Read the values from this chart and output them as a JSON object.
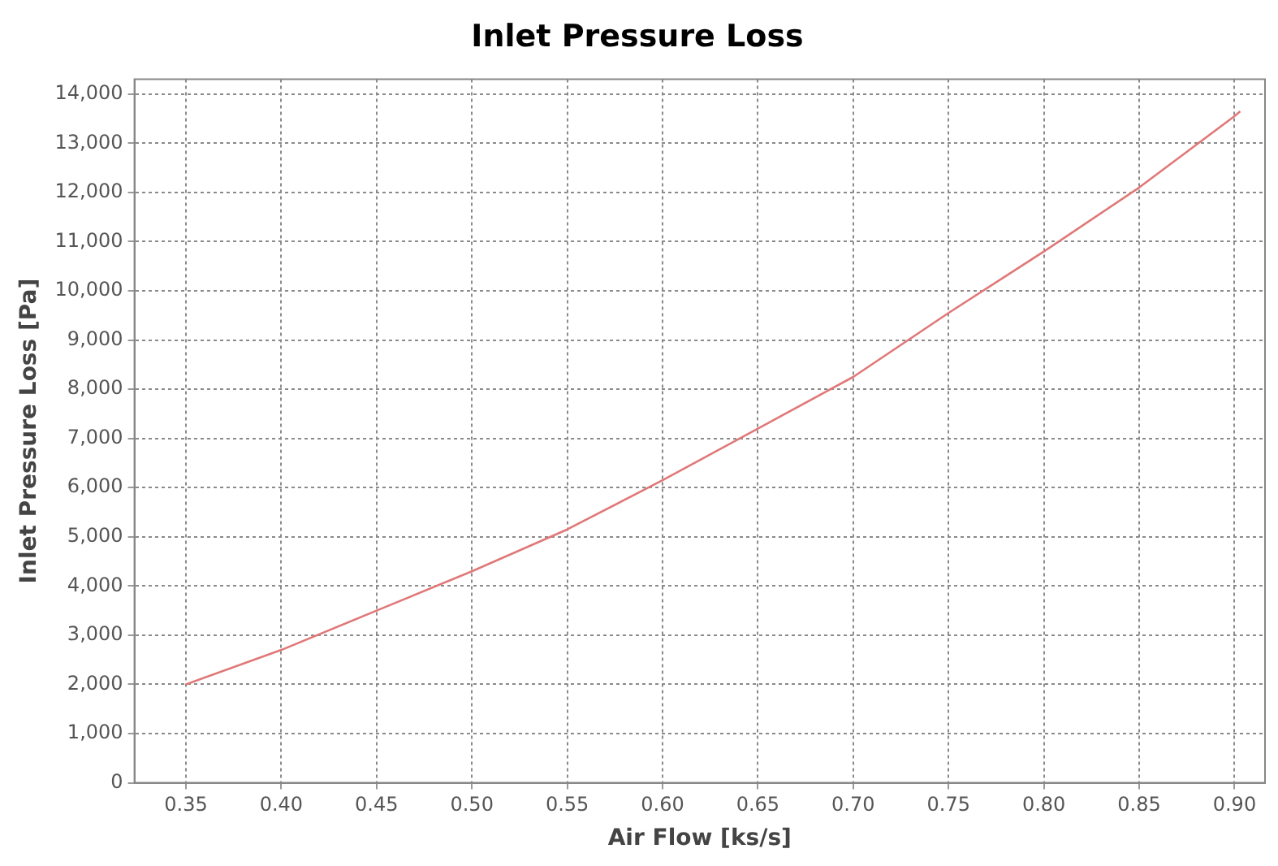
{
  "chart_data": {
    "type": "line",
    "title": "Inlet Pressure Loss",
    "xlabel": "Air Flow [ks/s]",
    "ylabel": "Inlet Pressure Loss [Pa]",
    "x": [
      0.35,
      0.4,
      0.45,
      0.5,
      0.55,
      0.6,
      0.65,
      0.7,
      0.75,
      0.8,
      0.85,
      0.9,
      0.903
    ],
    "series": [
      {
        "color": "#e07878",
        "values": [
          2000,
          2700,
          3500,
          4300,
          5150,
          6150,
          7200,
          8250,
          9550,
          10800,
          12100,
          13550,
          13650
        ]
      }
    ],
    "xlim": [
      0.323,
      0.916
    ],
    "ylim": [
      0,
      14300
    ],
    "xticks": [
      {
        "value": 0.35,
        "label": "0.35"
      },
      {
        "value": 0.4,
        "label": "0.40"
      },
      {
        "value": 0.45,
        "label": "0.45"
      },
      {
        "value": 0.5,
        "label": "0.50"
      },
      {
        "value": 0.55,
        "label": "0.55"
      },
      {
        "value": 0.6,
        "label": "0.60"
      },
      {
        "value": 0.65,
        "label": "0.65"
      },
      {
        "value": 0.7,
        "label": "0.70"
      },
      {
        "value": 0.75,
        "label": "0.75"
      },
      {
        "value": 0.8,
        "label": "0.80"
      },
      {
        "value": 0.85,
        "label": "0.85"
      },
      {
        "value": 0.9,
        "label": "0.90"
      }
    ],
    "yticks": [
      {
        "value": 0,
        "label": "0"
      },
      {
        "value": 1000,
        "label": "1,000"
      },
      {
        "value": 2000,
        "label": "2,000"
      },
      {
        "value": 3000,
        "label": "3,000"
      },
      {
        "value": 4000,
        "label": "4,000"
      },
      {
        "value": 5000,
        "label": "5,000"
      },
      {
        "value": 6000,
        "label": "6,000"
      },
      {
        "value": 7000,
        "label": "7,000"
      },
      {
        "value": 8000,
        "label": "8,000"
      },
      {
        "value": 9000,
        "label": "9,000"
      },
      {
        "value": 10000,
        "label": "10,000"
      },
      {
        "value": 11000,
        "label": "11,000"
      },
      {
        "value": 12000,
        "label": "12,000"
      },
      {
        "value": 13000,
        "label": "13,000"
      },
      {
        "value": 14000,
        "label": "14,000"
      }
    ],
    "grid": true,
    "legend": false,
    "marker": "none",
    "line_style": "solid"
  }
}
